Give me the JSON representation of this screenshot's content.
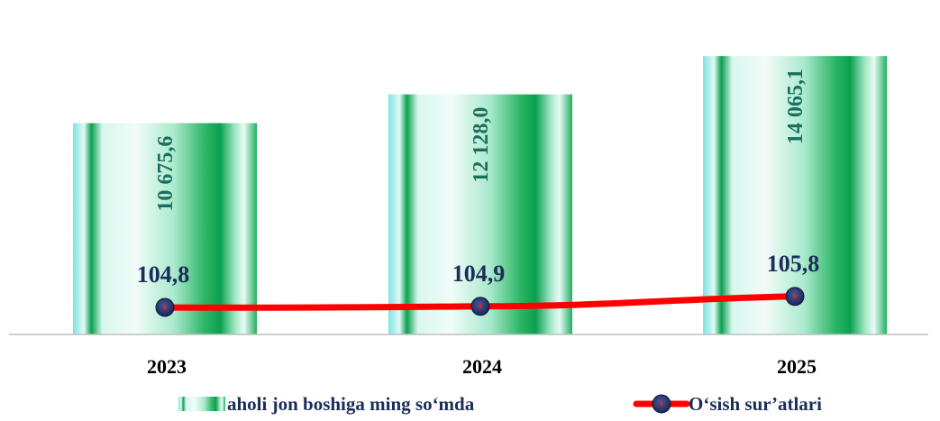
{
  "chart_data": {
    "type": "bar",
    "categories": [
      "2023",
      "2024",
      "2025"
    ],
    "series": [
      {
        "name": "aholi jon boshiga ming  so‘mda",
        "type": "bar",
        "values": [
          10675.6,
          12128.0,
          14065.1
        ],
        "labels": [
          "10 675,6",
          "12 128,0",
          "14 065,1"
        ]
      },
      {
        "name": "O‘sish sur’atlari",
        "type": "line",
        "values": [
          104.8,
          104.9,
          105.8
        ],
        "labels": [
          "104,8",
          "104,9",
          "105,8"
        ]
      }
    ],
    "colors": {
      "bar_dark": "#0aa04f",
      "bar_light": "#e9fbf6",
      "bar_cyan": "#7fe3e3",
      "bar_value_text": "#1b6f5e",
      "line": "#ff0000",
      "marker_fill": "#1f2a5a",
      "marker_center": "#e02020",
      "line_value_text": "#1b2d5a",
      "axis": "#bfbfbf",
      "category_text": "#000000"
    },
    "legend_position": "bottom",
    "grid": false
  }
}
